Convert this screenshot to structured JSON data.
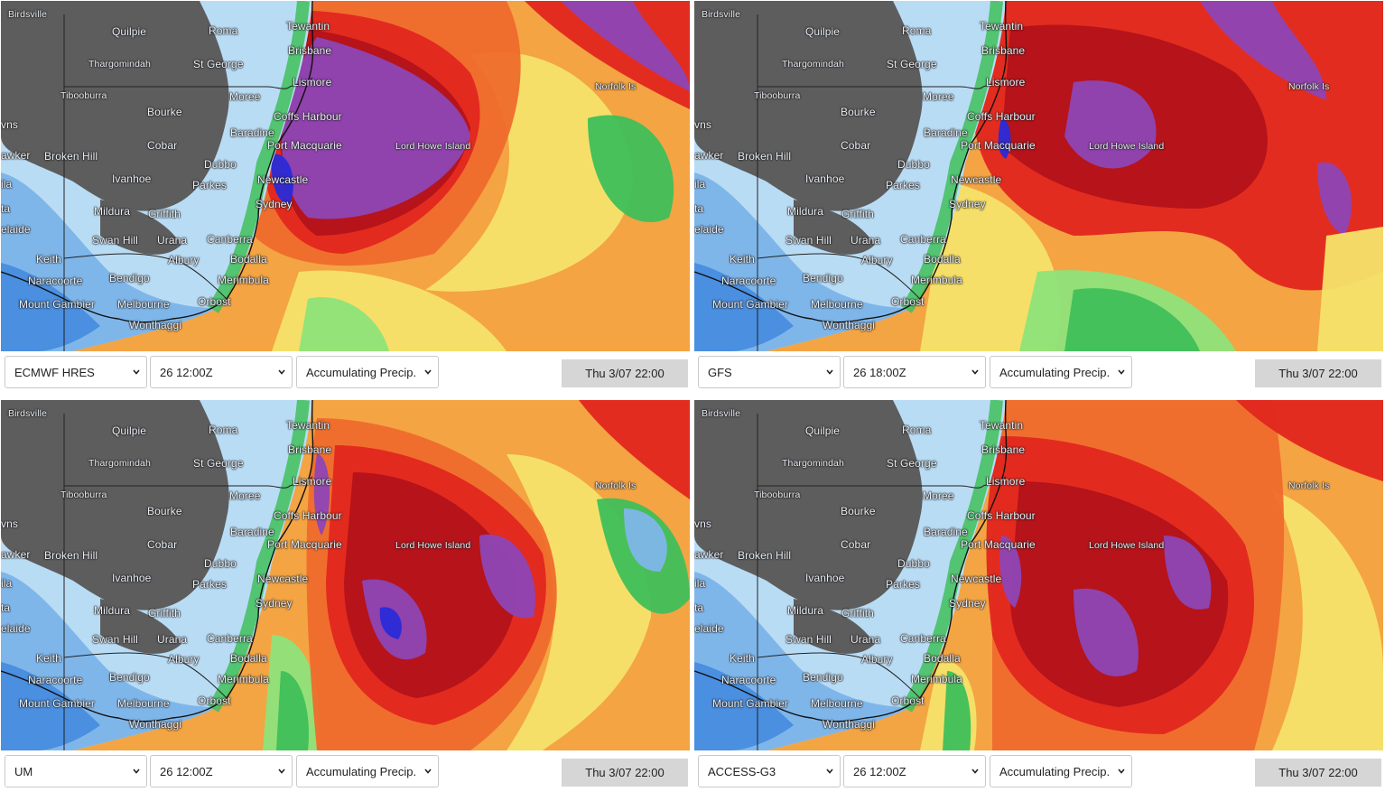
{
  "panels": [
    {
      "model": "ECMWF HRES",
      "run": "26 12:00Z",
      "variable": "Accumulating Precip.",
      "valid_time": "Thu 3/07 22:00",
      "pattern": "ecmwf"
    },
    {
      "model": "GFS",
      "run": "26 18:00Z",
      "variable": "Accumulating Precip.",
      "valid_time": "Thu 3/07 22:00",
      "pattern": "gfs"
    },
    {
      "model": "UM",
      "run": "26 12:00Z",
      "variable": "Accumulating Precip.",
      "valid_time": "Thu 3/07 22:00",
      "pattern": "um"
    },
    {
      "model": "ACCESS-G3",
      "run": "26 12:00Z",
      "variable": "Accumulating Precip.",
      "valid_time": "Thu 3/07 22:00",
      "pattern": "access"
    }
  ],
  "places": [
    "Birdsville",
    "Quilpie",
    "Roma",
    "Tewantin",
    "Brisbane",
    "Thargomindah",
    "St George",
    "Lismore",
    "Norfolk Is",
    "Tibooburra",
    "Moree",
    "Bourke",
    "Coffs Harbour",
    "Baradine",
    "Cobar",
    "Port Macquarie",
    "Lord Howe Island",
    "Broken Hill",
    "Dubbo",
    "Ivanhoe",
    "Parkes",
    "Newcastle",
    "Mildura",
    "Griffith",
    "Sydney",
    "Swan Hill",
    "Urana",
    "Canberra",
    "Keith",
    "Albury",
    "Bodalla",
    "Bendigo",
    "Naracoorte",
    "Merimbula",
    "Orbost",
    "Mount Gambier",
    "Melbourne",
    "Wonthaggi",
    "elaide",
    "awker",
    "vns",
    "ila",
    "ta"
  ],
  "colors": {
    "land_dry": "#5d5d5d",
    "light_blue": "#b9dcf5",
    "mid_blue": "#7fb6ea",
    "blue": "#4a8fe0",
    "green": "#3fbf5a",
    "light_green": "#8ee37a",
    "yellow": "#f6e36a",
    "orange": "#f3a443",
    "dark_orange": "#ef6c2c",
    "red": "#e1261f",
    "dark_red": "#b3121a",
    "purple": "#8e45b5",
    "indigo": "#2a2bd8"
  }
}
